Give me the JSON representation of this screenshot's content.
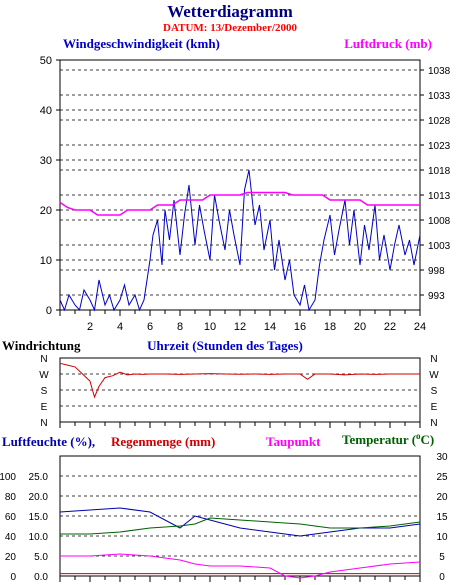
{
  "header": {
    "title": "Wetterdiagramm",
    "subtitle": "DATUM: 13/Dezember/2000"
  },
  "colors": {
    "wind": "#0000c8",
    "pressure": "#ff00ff",
    "direction": "#d00000",
    "humidity": "#0000b0",
    "rain": "#d00000",
    "dewpoint": "#ff00ff",
    "temperature": "#006000",
    "title": "#000080"
  },
  "chart_data": [
    {
      "id": "wind-pressure",
      "type": "line",
      "left_label": "Windgeschwindigkeit (kmh)",
      "right_label": "Luftdruck (mb)",
      "x_label": "Uhrzeit (Stunden des Tages)",
      "xlim": [
        0,
        24
      ],
      "x_ticks": [
        "2",
        "4",
        "6",
        "8",
        "10",
        "12",
        "14",
        "16",
        "18",
        "20",
        "22",
        "24"
      ],
      "ylim": [
        0,
        50
      ],
      "y_ticks": [
        "0",
        "10",
        "20",
        "30",
        "40",
        "50"
      ],
      "y2lim": [
        990,
        1040
      ],
      "y2_ticks": [
        "993",
        "998",
        "1003",
        "1008",
        "1013",
        "1018",
        "1023",
        "1028",
        "1033",
        "1038"
      ],
      "grid": true,
      "series": [
        {
          "name": "Windgeschwindigkeit (kmh)",
          "axis": "left",
          "x": [
            0,
            0.3,
            0.6,
            1.0,
            1.3,
            1.6,
            2.0,
            2.3,
            2.6,
            3.0,
            3.3,
            3.6,
            4.0,
            4.3,
            4.6,
            5.0,
            5.3,
            5.6,
            6.0,
            6.2,
            6.5,
            6.8,
            7.0,
            7.3,
            7.6,
            8.0,
            8.3,
            8.6,
            9.0,
            9.3,
            9.6,
            10.0,
            10.3,
            10.6,
            11.0,
            11.3,
            11.6,
            12.0,
            12.3,
            12.6,
            13.0,
            13.3,
            13.6,
            14.0,
            14.3,
            14.6,
            15.0,
            15.3,
            15.6,
            16.0,
            16.3,
            16.6,
            17.0,
            17.3,
            17.6,
            18.0,
            18.3,
            18.6,
            19.0,
            19.3,
            19.6,
            20.0,
            20.3,
            20.6,
            21.0,
            21.3,
            21.6,
            22.0,
            22.3,
            22.6,
            23.0,
            23.3,
            23.6,
            24.0
          ],
          "values": [
            2,
            0,
            3,
            1,
            0,
            4,
            2,
            0,
            6,
            1,
            3,
            0,
            2,
            5,
            1,
            3,
            0,
            2,
            10,
            15,
            18,
            9,
            20,
            14,
            22,
            11,
            19,
            25,
            13,
            21,
            16,
            10,
            23,
            18,
            12,
            20,
            15,
            9,
            24,
            28,
            17,
            21,
            12,
            18,
            8,
            14,
            6,
            10,
            3,
            1,
            5,
            0,
            2,
            9,
            14,
            19,
            11,
            16,
            22,
            13,
            20,
            9,
            17,
            12,
            21,
            10,
            15,
            8,
            13,
            17,
            11,
            14,
            9,
            15
          ]
        },
        {
          "name": "Luftdruck (mb)",
          "axis": "right",
          "x": [
            0,
            0.5,
            1.0,
            2.0,
            2.5,
            4.0,
            4.5,
            6.0,
            6.5,
            7.5,
            8.0,
            9.5,
            10.0,
            12.0,
            12.5,
            15.0,
            15.5,
            17.5,
            18.0,
            20.0,
            20.5,
            24.0
          ],
          "values": [
            1011.5,
            1010.5,
            1010.0,
            1010.0,
            1009.0,
            1009.0,
            1010.0,
            1010.0,
            1011.0,
            1011.0,
            1012.0,
            1012.0,
            1013.0,
            1013.0,
            1013.5,
            1013.5,
            1013.0,
            1013.0,
            1012.0,
            1012.0,
            1011.0,
            1011.0
          ]
        }
      ]
    },
    {
      "id": "wind-direction",
      "type": "line",
      "left_label": "Windrichtung",
      "xlim": [
        0,
        24
      ],
      "y_ticks": [
        "N",
        "W",
        "S",
        "E",
        "N"
      ],
      "ylim": [
        0,
        360
      ],
      "grid": true,
      "series": [
        {
          "name": "Windrichtung",
          "x": [
            0,
            0.5,
            1.0,
            1.5,
            2.0,
            2.3,
            2.6,
            3.0,
            3.5,
            4.0,
            4.5,
            5.0,
            5.5,
            6.0,
            7.0,
            8.0,
            9.0,
            10.0,
            11.0,
            12.0,
            13.0,
            14.0,
            15.0,
            16.0,
            16.5,
            17.0,
            18.0,
            19.0,
            20.0,
            21.0,
            22.0,
            23.0,
            24.0
          ],
          "values": [
            330,
            320,
            310,
            270,
            230,
            140,
            200,
            250,
            260,
            280,
            265,
            270,
            268,
            270,
            270,
            268,
            270,
            272,
            270,
            269,
            270,
            268,
            270,
            270,
            240,
            270,
            270,
            265,
            270,
            268,
            270,
            270,
            270
          ]
        }
      ]
    },
    {
      "id": "humidity-rain-dew-temp",
      "type": "line",
      "labels": {
        "humidity": "Luftfeuchte (%),",
        "rain": "Regenmenge (mm)",
        "dewpoint": "Taupunkt",
        "temperature": "Temperatur (",
        "degree": "o",
        "temp_unit": "C)"
      },
      "xlim": [
        0,
        24
      ],
      "humidity_ticks": [
        "100",
        "80",
        "60",
        "40",
        "20",
        "0"
      ],
      "rain_ticks": [
        "25.0",
        "20.0",
        "15.0",
        "10.0",
        "5.0",
        "0.0"
      ],
      "temp_ticks": [
        "30",
        "25",
        "20",
        "15",
        "10",
        "5",
        "0"
      ],
      "ylim": [
        0,
        30
      ],
      "grid": true,
      "series": [
        {
          "name": "Luftfeuchte (%)",
          "axis": "temp",
          "x": [
            0,
            2,
            4,
            6,
            8,
            9,
            10,
            12,
            14,
            16,
            18,
            20,
            22,
            24
          ],
          "values": [
            16,
            16.5,
            17,
            16,
            12,
            15,
            14,
            12,
            11,
            10,
            11,
            12,
            12,
            13
          ]
        },
        {
          "name": "Regenmenge (mm)",
          "axis": "temp",
          "x": [
            0,
            24
          ],
          "values": [
            0.6,
            0.6
          ]
        },
        {
          "name": "Taupunkt",
          "axis": "temp",
          "x": [
            0,
            2,
            4,
            6,
            8,
            9,
            10,
            12,
            14,
            15,
            16,
            17,
            18,
            20,
            22,
            24
          ],
          "values": [
            5,
            5,
            5.5,
            5,
            4,
            3,
            2.5,
            2.5,
            2,
            0,
            -0.5,
            0,
            1,
            2,
            3,
            3.5
          ]
        },
        {
          "name": "Temperatur (°C)",
          "axis": "temp",
          "x": [
            0,
            2,
            4,
            6,
            8,
            9,
            10,
            12,
            14,
            16,
            18,
            20,
            22,
            24
          ],
          "values": [
            10.5,
            10.5,
            11,
            12,
            12.5,
            13,
            14.5,
            14,
            13.5,
            13,
            12,
            12,
            12.5,
            13.5
          ]
        }
      ]
    }
  ]
}
